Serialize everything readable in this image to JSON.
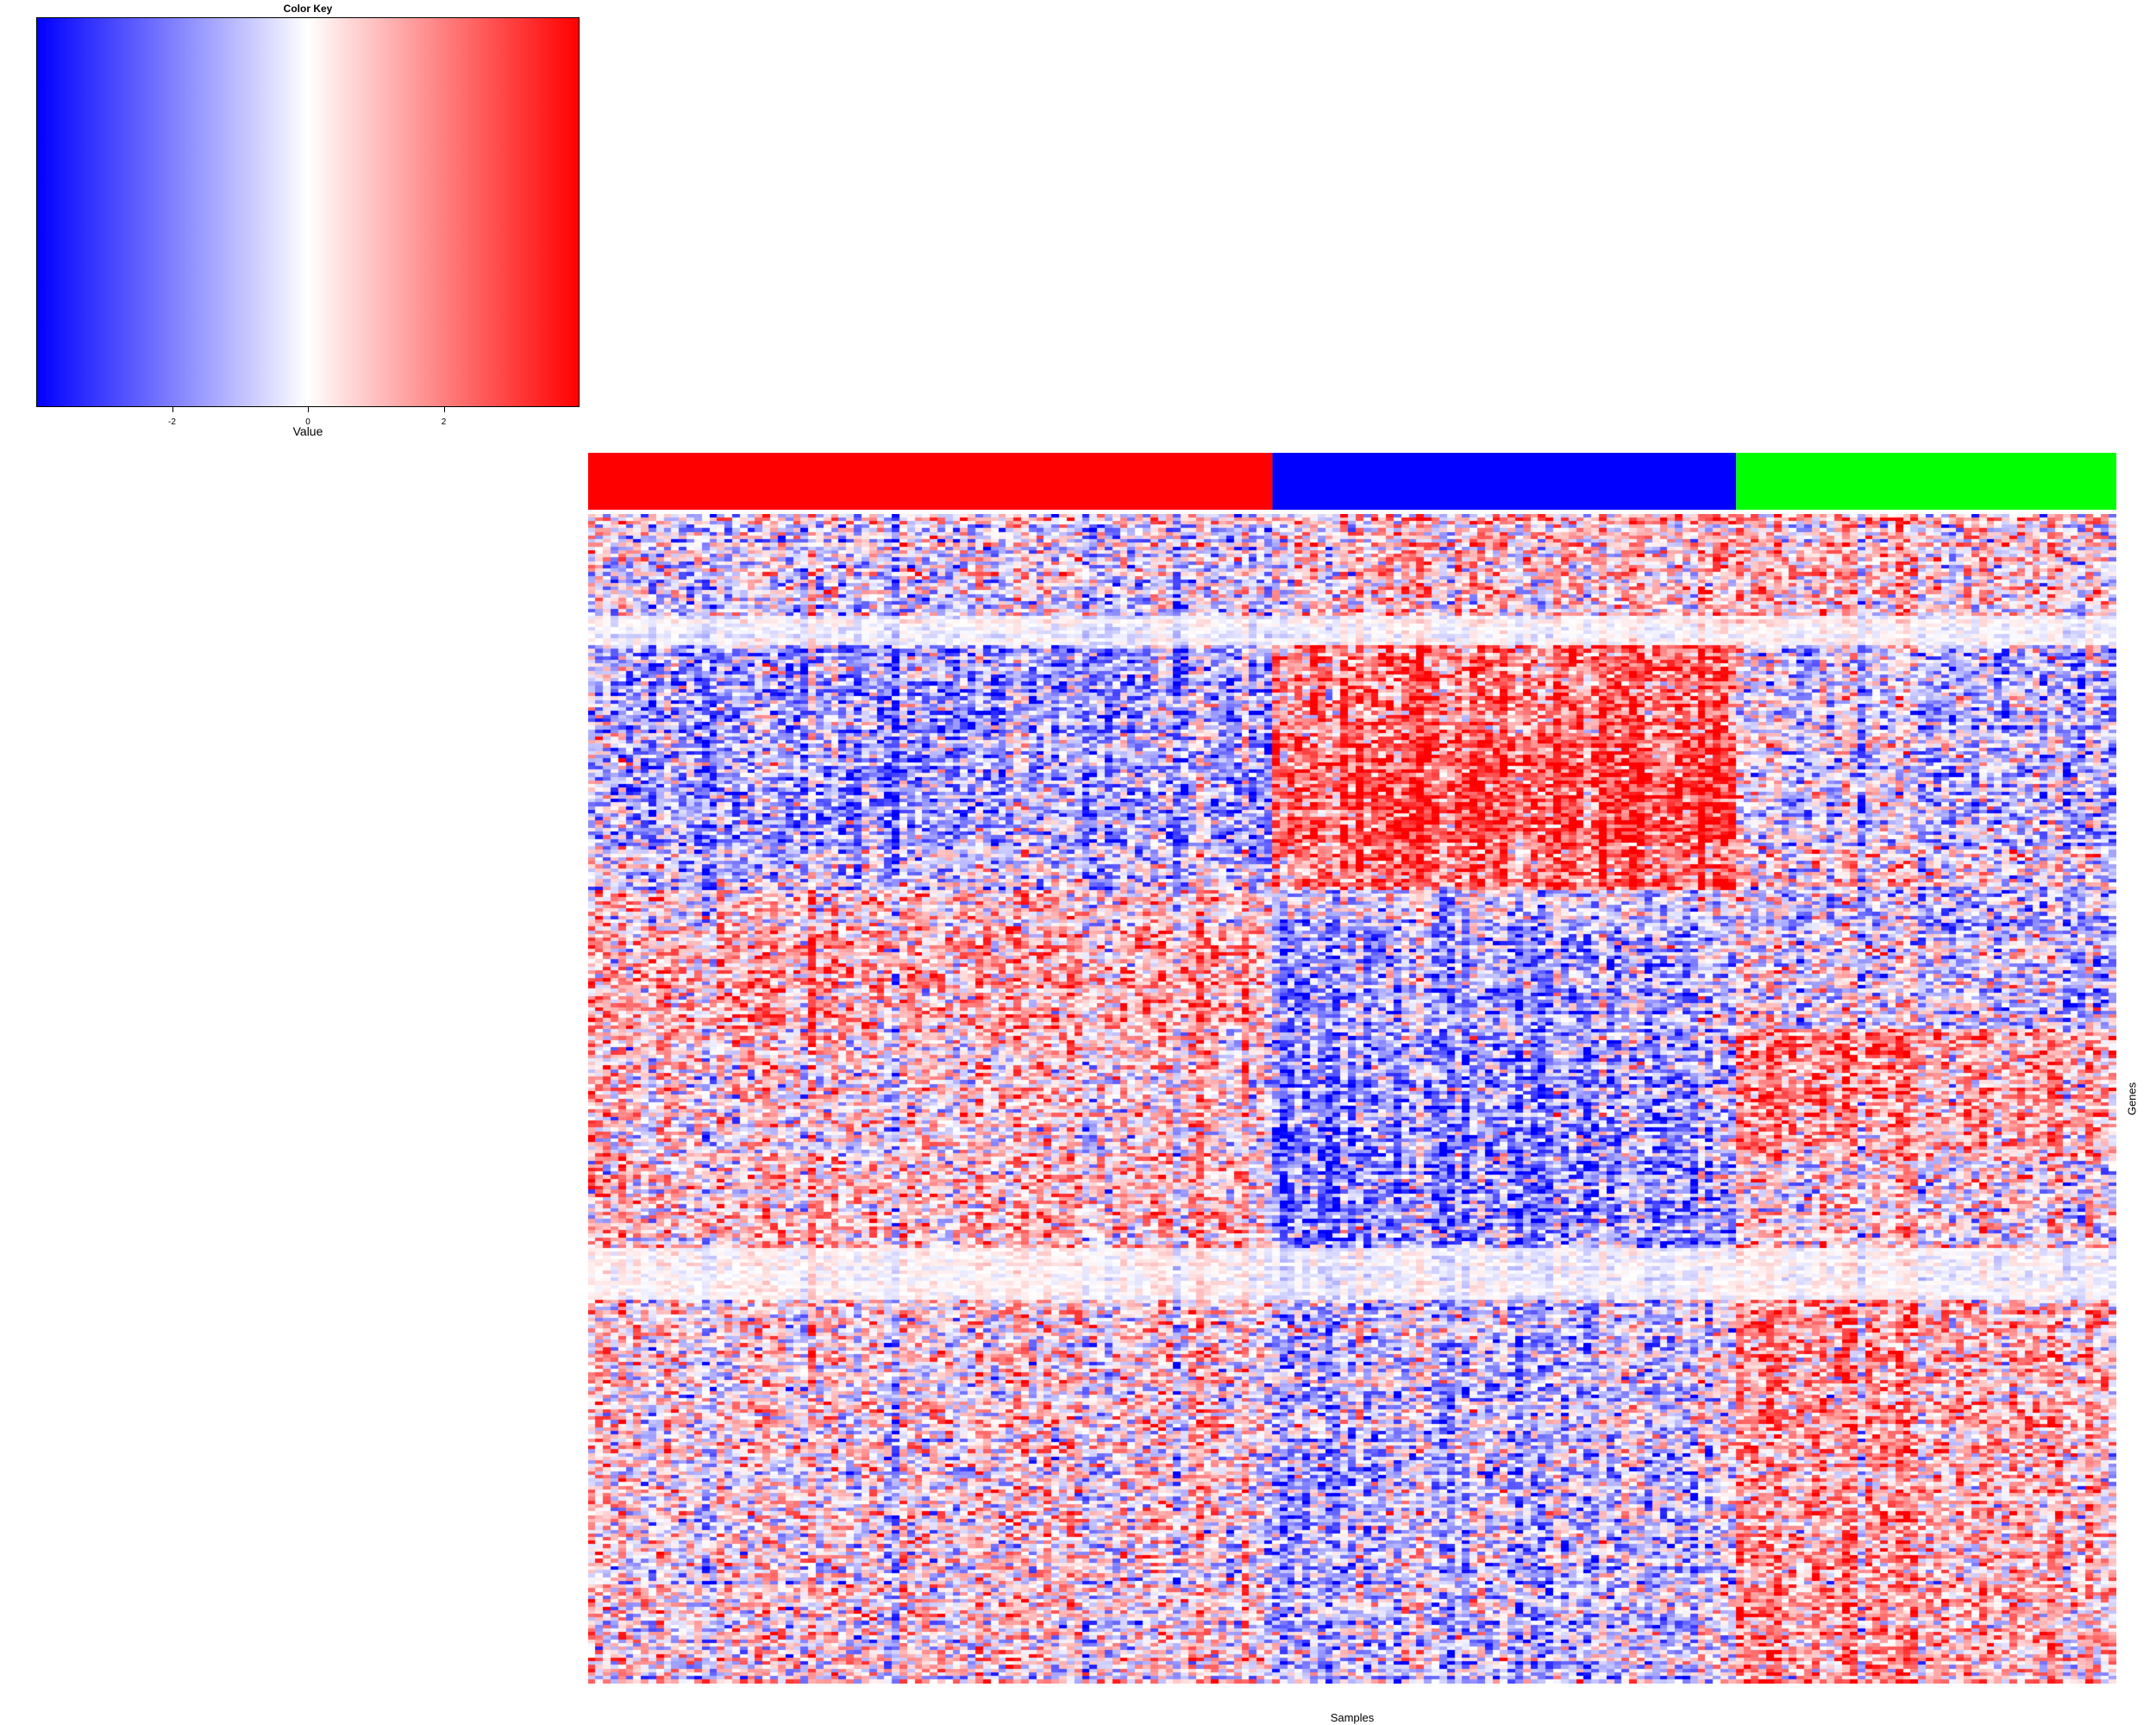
{
  "chart_data": {
    "type": "heatmap",
    "title": "",
    "xlabel": "Samples",
    "ylabel": "Genes",
    "color_key": {
      "title": "Color Key",
      "xlabel": "Value",
      "ticks": [
        "-2",
        "0",
        "2"
      ],
      "tick_values": [
        -2,
        0,
        2
      ],
      "range": [
        -4,
        4
      ],
      "colors": [
        "#0000ff",
        "#ffffff",
        "#ff0000"
      ]
    },
    "column_groups": [
      {
        "color": "#ff0000",
        "n_samples": 90
      },
      {
        "color": "#0000ff",
        "n_samples": 61
      },
      {
        "color": "#00ff00",
        "n_samples": 50
      }
    ],
    "n_genes": 320,
    "row_blocks": [
      {
        "rows": 28,
        "group_means": [
          -0.3,
          0.5,
          0.5
        ]
      },
      {
        "rows": 8,
        "group_means": [
          -0.2,
          0.2,
          0.2
        ],
        "muted": true
      },
      {
        "rows": 30,
        "group_means": [
          -0.9,
          1.8,
          -0.3
        ]
      },
      {
        "rows": 25,
        "group_means": [
          -1.0,
          2.2,
          -0.4
        ]
      },
      {
        "rows": 12,
        "group_means": [
          -0.6,
          1.6,
          0.1
        ]
      },
      {
        "rows": 10,
        "group_means": [
          0.4,
          -0.4,
          -0.7
        ]
      },
      {
        "rows": 28,
        "group_means": [
          0.9,
          -0.9,
          -0.2
        ]
      },
      {
        "rows": 35,
        "group_means": [
          0.3,
          -1.1,
          1.2
        ]
      },
      {
        "rows": 25,
        "group_means": [
          0.6,
          -1.2,
          0.3
        ]
      },
      {
        "rows": 14,
        "group_means": [
          0.2,
          -0.2,
          0.1
        ],
        "muted": true
      },
      {
        "rows": 105,
        "group_means": [
          0.2,
          -0.5,
          1.0
        ]
      }
    ]
  }
}
